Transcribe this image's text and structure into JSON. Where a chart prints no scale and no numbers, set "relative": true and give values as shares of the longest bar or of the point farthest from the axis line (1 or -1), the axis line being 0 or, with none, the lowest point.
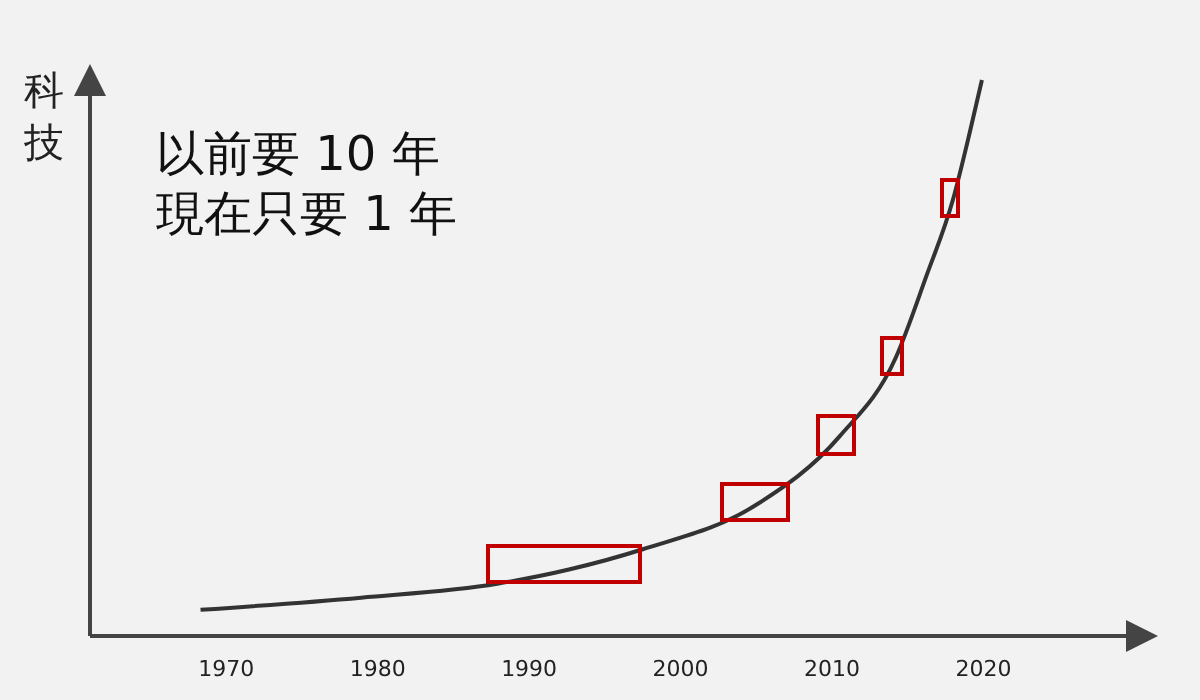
{
  "chart_data": {
    "type": "line",
    "ylabel": "科技",
    "relative": true,
    "x": [
      1968.3,
      1978.9,
      1987.9,
      1992.7,
      1997.5,
      2005,
      2010.5,
      2014.2,
      2016.2,
      2018,
      2019.1,
      2019.9
    ],
    "series": [
      {
        "color": "#333333",
        "values": [
          0.047,
          0.069,
          0.094,
          0.12,
          0.156,
          0.236,
          0.359,
          0.5,
          0.645,
          0.786,
          0.906,
          1
        ]
      }
    ],
    "xlim": [
      1961,
      2031
    ],
    "xticks": [
      1970,
      1980,
      1990,
      2000,
      2010,
      2020
    ],
    "annotations": [
      "以前要 10 年",
      "現在只要 1 年"
    ],
    "marker": "none",
    "line_style": "solid"
  }
}
